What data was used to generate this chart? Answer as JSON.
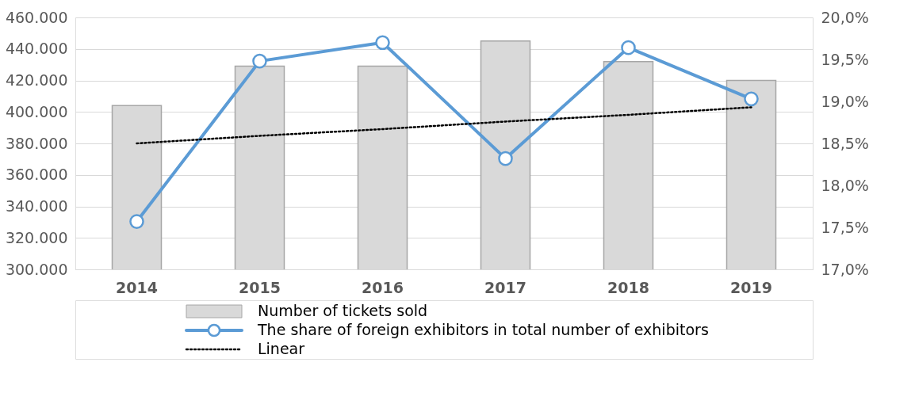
{
  "chart_data": {
    "type": "bar",
    "categories": [
      "2014",
      "2015",
      "2016",
      "2017",
      "2018",
      "2019"
    ],
    "series": [
      {
        "name": "Number of tickets sold",
        "color": "#d9d9d9",
        "values": [
          404000,
          429000,
          429000,
          445000,
          432000,
          420000
        ]
      },
      {
        "name": "The share of foreign exhibitors in total number of exhibitors",
        "type": "line",
        "axis": "y2",
        "color": "#5b9bd5",
        "marker": "circle",
        "line_style": "solid",
        "values": [
          17.57,
          19.48,
          19.7,
          18.32,
          19.64,
          19.03
        ]
      },
      {
        "name": "Linear",
        "type": "line",
        "axis": "y2",
        "color": "#000000",
        "marker": "none",
        "line_style": "dotted",
        "values": [
          18.5,
          18.59,
          18.67,
          18.76,
          18.84,
          18.93
        ]
      }
    ],
    "ylim": [
      300000,
      460000
    ],
    "yticks": [
      {
        "value": 300000,
        "label": "300.000"
      },
      {
        "value": 320000,
        "label": "320.000"
      },
      {
        "value": 340000,
        "label": "340.000"
      },
      {
        "value": 360000,
        "label": "360.000"
      },
      {
        "value": 380000,
        "label": "380.000"
      },
      {
        "value": 400000,
        "label": "400.000"
      },
      {
        "value": 420000,
        "label": "420.000"
      },
      {
        "value": 440000,
        "label": "440.000"
      },
      {
        "value": 460000,
        "label": "460.000"
      }
    ],
    "y2lim": [
      17.0,
      20.0
    ],
    "y2ticks": [
      {
        "value": 17.0,
        "label": "17,0%"
      },
      {
        "value": 17.5,
        "label": "17,5%"
      },
      {
        "value": 18.0,
        "label": "18,0%"
      },
      {
        "value": 18.5,
        "label": "18,5%"
      },
      {
        "value": 19.0,
        "label": "19,0%"
      },
      {
        "value": 19.5,
        "label": "19,5%"
      },
      {
        "value": 20.0,
        "label": "20,0%"
      }
    ],
    "grid": "y",
    "legend": "bottom"
  }
}
